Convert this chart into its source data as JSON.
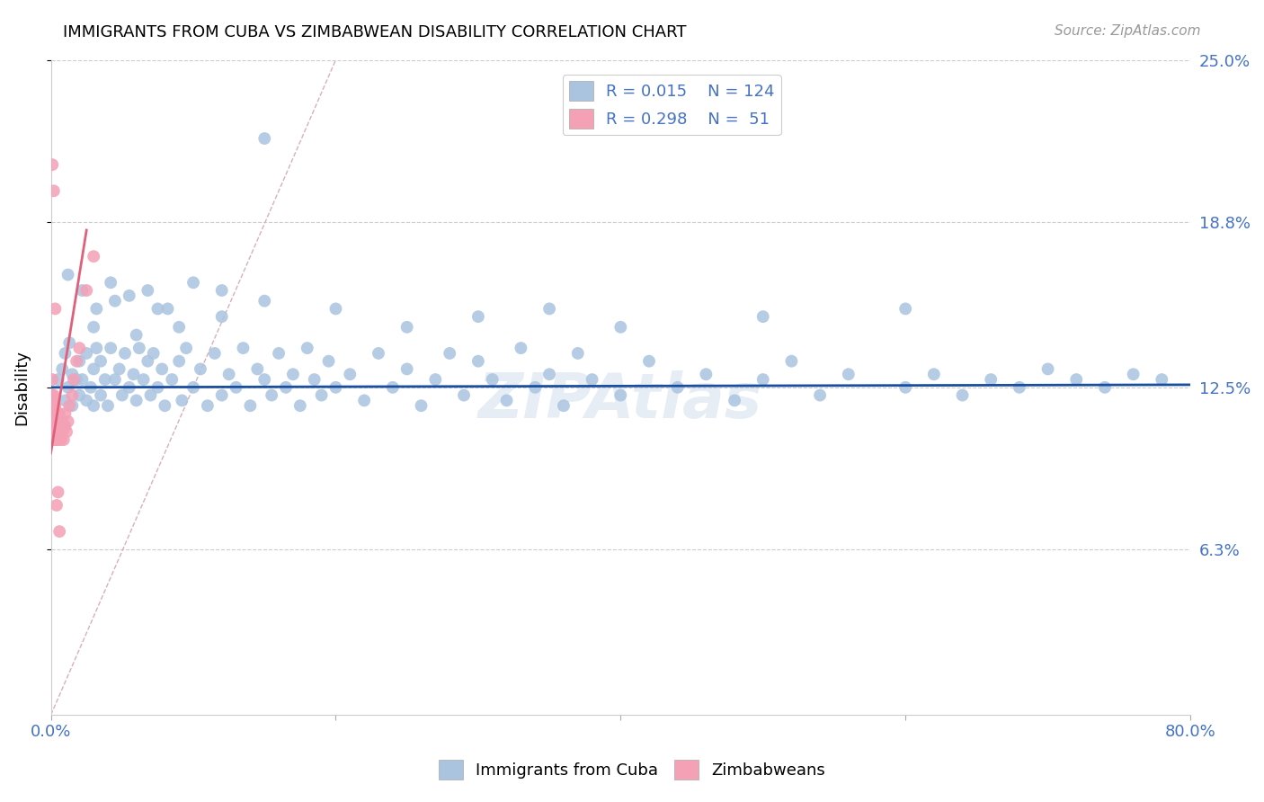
{
  "title": "IMMIGRANTS FROM CUBA VS ZIMBABWEAN DISABILITY CORRELATION CHART",
  "source": "Source: ZipAtlas.com",
  "ylabel": "Disability",
  "xlim": [
    0.0,
    0.8
  ],
  "ylim": [
    0.0,
    0.25
  ],
  "ytick_values": [
    0.063,
    0.125,
    0.188,
    0.25
  ],
  "ytick_labels": [
    "6.3%",
    "12.5%",
    "18.8%",
    "25.0%"
  ],
  "blue_R": 0.015,
  "blue_N": 124,
  "pink_R": 0.298,
  "pink_N": 51,
  "blue_color": "#aac4e0",
  "pink_color": "#f4a0b5",
  "blue_line_color": "#1a4fa0",
  "pink_line_color": "#e0607a",
  "ref_line_color": "#d8b0b8",
  "blue_scatter_x": [
    0.005,
    0.008,
    0.01,
    0.01,
    0.012,
    0.013,
    0.015,
    0.015,
    0.018,
    0.02,
    0.02,
    0.022,
    0.025,
    0.025,
    0.028,
    0.03,
    0.03,
    0.032,
    0.035,
    0.035,
    0.038,
    0.04,
    0.042,
    0.045,
    0.048,
    0.05,
    0.052,
    0.055,
    0.058,
    0.06,
    0.062,
    0.065,
    0.068,
    0.07,
    0.072,
    0.075,
    0.078,
    0.08,
    0.085,
    0.09,
    0.092,
    0.095,
    0.1,
    0.105,
    0.11,
    0.115,
    0.12,
    0.125,
    0.13,
    0.135,
    0.14,
    0.145,
    0.15,
    0.155,
    0.16,
    0.165,
    0.17,
    0.175,
    0.18,
    0.185,
    0.19,
    0.195,
    0.2,
    0.21,
    0.22,
    0.23,
    0.24,
    0.25,
    0.26,
    0.27,
    0.28,
    0.29,
    0.3,
    0.31,
    0.32,
    0.33,
    0.34,
    0.35,
    0.36,
    0.37,
    0.38,
    0.4,
    0.42,
    0.44,
    0.46,
    0.48,
    0.5,
    0.52,
    0.54,
    0.56,
    0.6,
    0.62,
    0.64,
    0.66,
    0.68,
    0.7,
    0.72,
    0.74,
    0.76,
    0.78,
    0.03,
    0.045,
    0.06,
    0.075,
    0.09,
    0.12,
    0.15,
    0.2,
    0.25,
    0.3,
    0.35,
    0.4,
    0.5,
    0.6,
    0.012,
    0.022,
    0.032,
    0.042,
    0.055,
    0.068,
    0.082,
    0.1,
    0.12,
    0.15
  ],
  "blue_scatter_y": [
    0.128,
    0.132,
    0.12,
    0.138,
    0.125,
    0.142,
    0.118,
    0.13,
    0.128,
    0.122,
    0.135,
    0.128,
    0.12,
    0.138,
    0.125,
    0.118,
    0.132,
    0.14,
    0.122,
    0.135,
    0.128,
    0.118,
    0.14,
    0.128,
    0.132,
    0.122,
    0.138,
    0.125,
    0.13,
    0.12,
    0.14,
    0.128,
    0.135,
    0.122,
    0.138,
    0.125,
    0.132,
    0.118,
    0.128,
    0.135,
    0.12,
    0.14,
    0.125,
    0.132,
    0.118,
    0.138,
    0.122,
    0.13,
    0.125,
    0.14,
    0.118,
    0.132,
    0.128,
    0.122,
    0.138,
    0.125,
    0.13,
    0.118,
    0.14,
    0.128,
    0.122,
    0.135,
    0.125,
    0.13,
    0.12,
    0.138,
    0.125,
    0.132,
    0.118,
    0.128,
    0.138,
    0.122,
    0.135,
    0.128,
    0.12,
    0.14,
    0.125,
    0.13,
    0.118,
    0.138,
    0.128,
    0.122,
    0.135,
    0.125,
    0.13,
    0.12,
    0.128,
    0.135,
    0.122,
    0.13,
    0.125,
    0.13,
    0.122,
    0.128,
    0.125,
    0.132,
    0.128,
    0.125,
    0.13,
    0.128,
    0.148,
    0.158,
    0.145,
    0.155,
    0.148,
    0.152,
    0.158,
    0.155,
    0.148,
    0.152,
    0.155,
    0.148,
    0.152,
    0.155,
    0.168,
    0.162,
    0.155,
    0.165,
    0.16,
    0.162,
    0.155,
    0.165,
    0.162,
    0.22
  ],
  "pink_scatter_x": [
    0.001,
    0.001,
    0.001,
    0.001,
    0.001,
    0.001,
    0.001,
    0.001,
    0.002,
    0.002,
    0.002,
    0.002,
    0.002,
    0.002,
    0.003,
    0.003,
    0.003,
    0.003,
    0.003,
    0.004,
    0.004,
    0.004,
    0.004,
    0.005,
    0.005,
    0.005,
    0.006,
    0.006,
    0.007,
    0.007,
    0.008,
    0.008,
    0.009,
    0.009,
    0.01,
    0.01,
    0.011,
    0.012,
    0.013,
    0.015,
    0.016,
    0.018,
    0.02,
    0.025,
    0.03,
    0.001,
    0.002,
    0.003,
    0.004,
    0.005,
    0.006
  ],
  "pink_scatter_y": [
    0.128,
    0.122,
    0.118,
    0.112,
    0.108,
    0.115,
    0.12,
    0.105,
    0.118,
    0.112,
    0.108,
    0.115,
    0.122,
    0.105,
    0.115,
    0.11,
    0.118,
    0.108,
    0.112,
    0.112,
    0.108,
    0.115,
    0.105,
    0.11,
    0.105,
    0.115,
    0.108,
    0.115,
    0.11,
    0.105,
    0.108,
    0.112,
    0.105,
    0.11,
    0.11,
    0.115,
    0.108,
    0.112,
    0.118,
    0.122,
    0.128,
    0.135,
    0.14,
    0.162,
    0.175,
    0.21,
    0.2,
    0.155,
    0.08,
    0.085,
    0.07
  ]
}
